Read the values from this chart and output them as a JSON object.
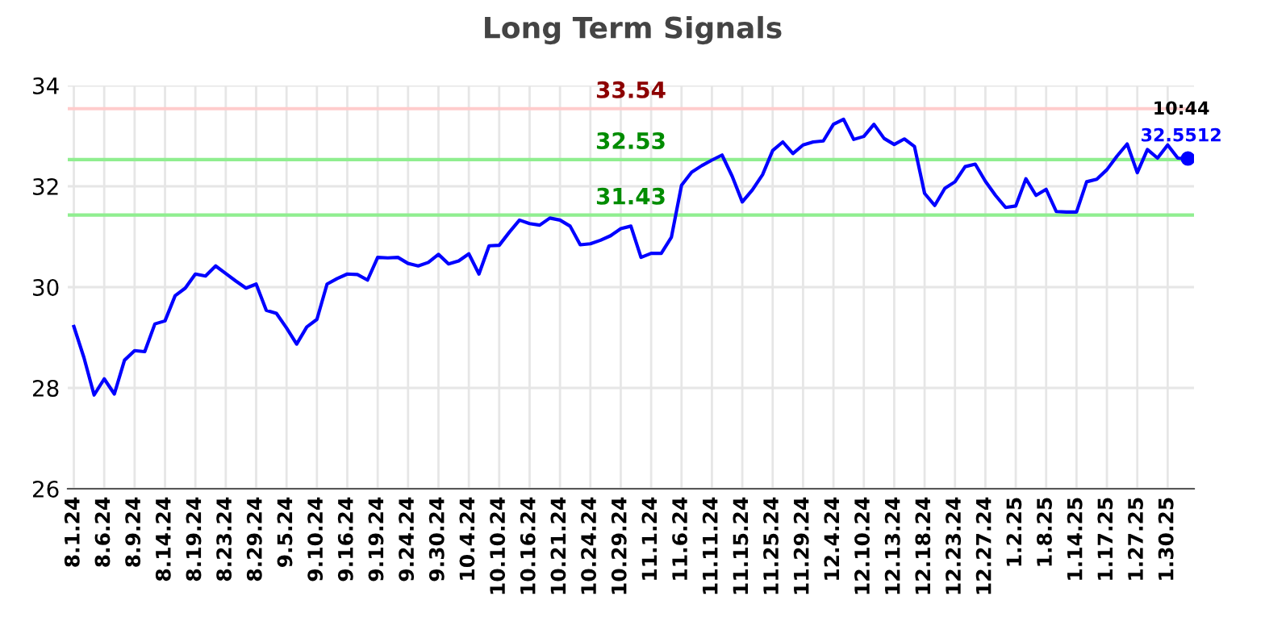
{
  "chart_data": {
    "type": "line",
    "title": "Long Term Signals",
    "categories": [
      "8.1.24",
      null,
      null,
      "8.6.24",
      null,
      null,
      "8.9.24",
      null,
      null,
      "8.14.24",
      null,
      null,
      "8.19.24",
      null,
      null,
      "8.23.24",
      null,
      null,
      "8.29.24",
      null,
      null,
      "9.5.24",
      null,
      null,
      "9.10.24",
      null,
      null,
      "9.16.24",
      null,
      null,
      "9.19.24",
      null,
      null,
      "9.24.24",
      null,
      null,
      "9.30.24",
      null,
      null,
      "10.4.24",
      null,
      null,
      "10.10.24",
      null,
      null,
      "10.16.24",
      null,
      null,
      "10.21.24",
      null,
      null,
      "10.24.24",
      null,
      null,
      "10.29.24",
      null,
      null,
      "11.1.24",
      null,
      null,
      "11.6.24",
      null,
      null,
      "11.11.24",
      null,
      null,
      "11.15.24",
      null,
      null,
      "11.25.24",
      null,
      null,
      "11.29.24",
      null,
      null,
      "12.4.24",
      null,
      null,
      "12.10.24",
      null,
      null,
      "12.13.24",
      null,
      null,
      "12.18.24",
      null,
      null,
      "12.23.24",
      null,
      null,
      "12.27.24",
      null,
      null,
      "1.2.25",
      null,
      null,
      "1.8.25",
      null,
      null,
      "1.14.25",
      null,
      null,
      "1.17.25",
      null,
      null,
      "1.27.25",
      null,
      null,
      "1.30.25",
      null,
      null
    ],
    "series": [
      {
        "color": "#0000ff",
        "values": [
          29.22,
          28.6,
          27.86,
          28.18,
          27.88,
          28.55,
          28.74,
          28.72,
          29.27,
          29.33,
          29.83,
          29.98,
          30.26,
          30.22,
          30.42,
          30.27,
          30.12,
          29.98,
          30.06,
          29.54,
          29.48,
          29.19,
          28.87,
          29.21,
          29.36,
          30.06,
          30.17,
          30.26,
          30.25,
          30.14,
          30.59,
          30.58,
          30.59,
          30.47,
          30.42,
          30.49,
          30.65,
          30.46,
          30.52,
          30.66,
          30.26,
          30.82,
          30.83,
          31.09,
          31.33,
          31.26,
          31.23,
          31.37,
          31.33,
          31.21,
          30.84,
          30.86,
          30.93,
          31.02,
          31.16,
          31.21,
          30.59,
          30.67,
          30.67,
          30.99,
          32.02,
          32.28,
          32.41,
          32.52,
          32.62,
          32.2,
          31.69,
          31.93,
          32.23,
          32.71,
          32.88,
          32.65,
          32.82,
          32.88,
          32.9,
          33.23,
          33.33,
          32.93,
          32.99,
          33.23,
          32.95,
          32.83,
          32.94,
          32.79,
          31.86,
          31.62,
          31.96,
          32.09,
          32.39,
          32.44,
          32.1,
          31.82,
          31.58,
          31.61,
          32.15,
          31.82,
          31.94,
          31.5,
          31.49,
          31.49,
          32.09,
          32.14,
          32.33,
          32.6,
          32.84,
          32.27,
          32.73,
          32.56,
          32.82,
          32.56,
          32.5512
        ]
      },
      {
        "type": "scatter",
        "marker": "circle",
        "color": "#0000ff",
        "values": [
          null,
          null,
          null,
          null,
          null,
          null,
          null,
          null,
          null,
          null,
          null,
          null,
          null,
          null,
          null,
          null,
          null,
          null,
          null,
          null,
          null,
          null,
          null,
          null,
          null,
          null,
          null,
          null,
          null,
          null,
          null,
          null,
          null,
          null,
          null,
          null,
          null,
          null,
          null,
          null,
          null,
          null,
          null,
          null,
          null,
          null,
          null,
          null,
          null,
          null,
          null,
          null,
          null,
          null,
          null,
          null,
          null,
          null,
          null,
          null,
          null,
          null,
          null,
          null,
          null,
          null,
          null,
          null,
          null,
          null,
          null,
          null,
          null,
          null,
          null,
          null,
          null,
          null,
          null,
          null,
          null,
          null,
          null,
          null,
          null,
          null,
          null,
          null,
          null,
          null,
          null,
          null,
          null,
          null,
          null,
          null,
          null,
          null,
          null,
          null,
          null,
          null,
          null,
          null,
          null,
          null,
          null,
          null,
          null,
          null,
          32.5512
        ]
      }
    ],
    "ylim": [
      26,
      34
    ],
    "yticks": [
      26,
      28,
      30,
      32,
      34
    ],
    "grid": true,
    "line_style": "solid",
    "ref_lines": [
      {
        "axis": "y",
        "value": 33.54,
        "label": "33.54",
        "color": "#ffcccc"
      },
      {
        "axis": "y",
        "value": 32.53,
        "label": "32.53",
        "color": "#90ee90"
      },
      {
        "axis": "y",
        "value": 31.43,
        "label": "31.43",
        "color": "#90ee90"
      }
    ],
    "annotations": [
      "10:44",
      {
        "text": "32.5512",
        "y": 32.5512
      }
    ]
  }
}
